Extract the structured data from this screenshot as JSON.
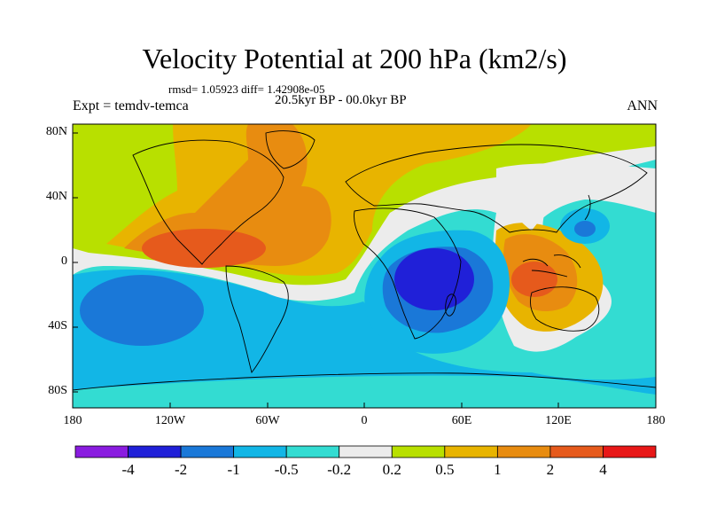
{
  "title": "Velocity Potential at 200 hPa (km2/s)",
  "stats": "rmsd= 1.05923 diff= 1.42908e-05",
  "experiment": "Expt = temdv-temca",
  "period": "20.5kyr BP - 00.0kyr BP",
  "season": "ANN",
  "axes": {
    "lat_labels": [
      "80N",
      "40N",
      "0",
      "40S",
      "80S"
    ],
    "lon_labels": [
      "180",
      "120W",
      "60W",
      "0",
      "60E",
      "120E",
      "180"
    ]
  },
  "colorbar": {
    "labels": [
      "-4",
      "-2",
      "-1",
      "-0.5",
      "-0.2",
      "0.2",
      "0.5",
      "1",
      "2",
      "4"
    ],
    "colors": [
      "#8a1ce0",
      "#2020d8",
      "#1a78d8",
      "#12b6e6",
      "#33dcd2",
      "#ececec",
      "#b8e000",
      "#e8b400",
      "#e88c10",
      "#e65a1c",
      "#e81818"
    ]
  },
  "map_colors": {
    "ocean_negative_weak": "#33dcd2",
    "ocean_negative": "#12b6e6",
    "negative_strong": "#1a78d8",
    "negative_core": "#2020d8",
    "neutral": "#ececec",
    "positive_weak": "#b8e000",
    "positive": "#e8b400",
    "positive_mid": "#e88c10",
    "positive_strong": "#e65a1c"
  }
}
